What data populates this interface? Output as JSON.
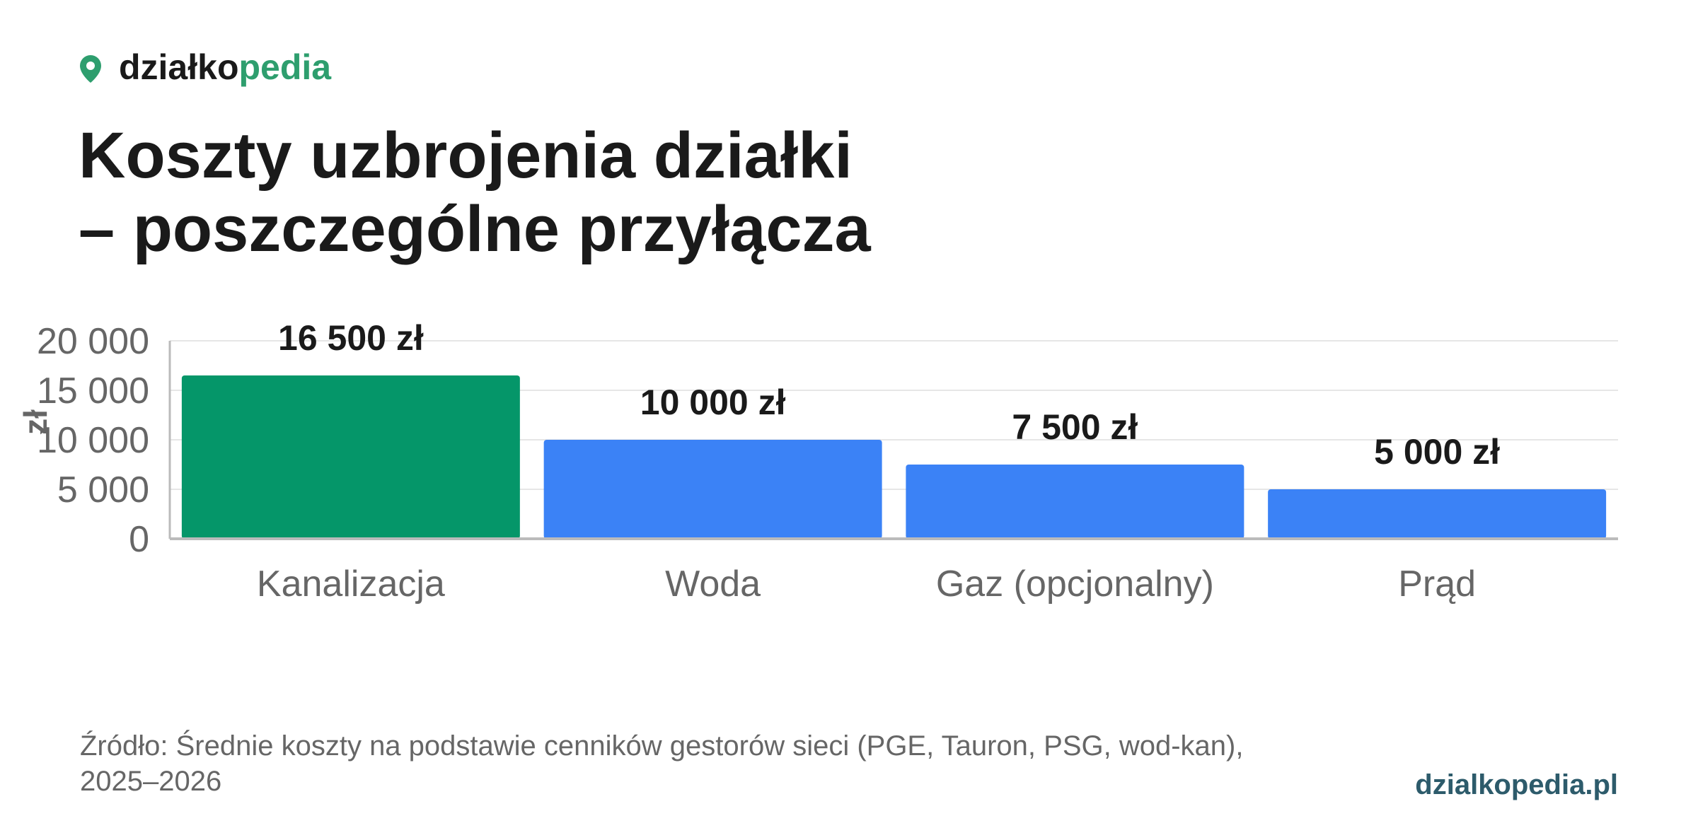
{
  "brand": {
    "part1": "działko",
    "part2": "pedia"
  },
  "chart_data": {
    "type": "bar",
    "title": [
      "Koszty uzbrojenia działki",
      "– poszczególne przyłącza"
    ],
    "y_label": "zł",
    "categories": [
      "Kanalizacja",
      "Woda",
      "Gaz (opcjonalny)",
      "Prąd"
    ],
    "values": [
      16500,
      10000,
      7500,
      5000
    ],
    "value_labels": [
      "16 500 zł",
      "10 000 zł",
      "7 500 zł",
      "5 000 zł"
    ],
    "colors": [
      "#059669",
      "#3b82f6",
      "#3b82f6",
      "#3b82f6"
    ],
    "ylim": [
      0,
      20000
    ],
    "yticks": [
      0,
      {
        "value": 5000,
        "label": "5 000"
      },
      {
        "value": 10000,
        "label": "10 000"
      },
      {
        "value": 15000,
        "label": "15 000"
      },
      {
        "value": 20000,
        "label": "20 000"
      }
    ],
    "grid": true
  },
  "footer": {
    "source": "Źródło: Średnie koszty na podstawie cenników gestorów sieci (PGE, Tauron, PSG, wod-kan), 2025–2026",
    "site": "dzialkopedia.pl"
  }
}
